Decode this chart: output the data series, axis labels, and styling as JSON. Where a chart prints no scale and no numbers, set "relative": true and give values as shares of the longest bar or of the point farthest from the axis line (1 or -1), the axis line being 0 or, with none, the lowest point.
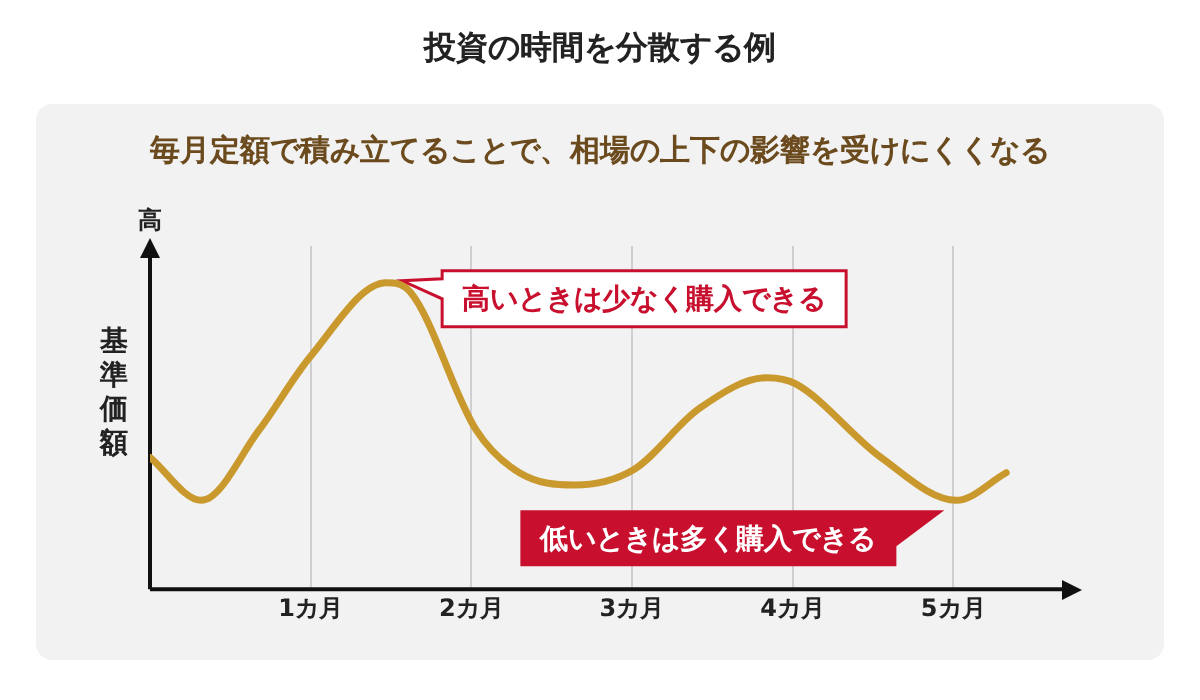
{
  "chart_data": {
    "type": "line",
    "title": "投資の時間を分散する例",
    "subtitle": "毎月定額で積み立てることで、相場の上下の影響を受けにくくなる",
    "ylabel": "基準価額",
    "relative": true,
    "x": [
      0,
      0.32,
      0.68,
      1.0,
      1.47,
      1.62,
      2.03,
      2.3,
      2.64,
      3.01,
      3.42,
      3.84,
      4.02,
      4.55,
      5.02,
      5.33
    ],
    "series": [
      {
        "color": "#c9992e",
        "values": [
          0.43,
          0.29,
          0.52,
          0.76,
          1.0,
          0.97,
          0.52,
          0.38,
          0.34,
          0.39,
          0.59,
          0.69,
          0.67,
          0.43,
          0.29,
          0.38
        ]
      }
    ],
    "xlim": [
      0,
      5.69
    ],
    "xticks": [
      {
        "value": 1,
        "label": "1カ月"
      },
      {
        "value": 2,
        "label": "2カ月"
      },
      {
        "value": 3,
        "label": "3カ月"
      },
      {
        "value": 4,
        "label": "4カ月"
      },
      {
        "value": 5,
        "label": "5カ月"
      }
    ],
    "grid": "x",
    "legend": false,
    "marker": "none",
    "line_style": "solid",
    "annotations": [
      "高",
      {
        "text": "高いときは少なく購入できる",
        "x": 1.47,
        "y": 1.0
      },
      {
        "text": "低いときは多く購入できる",
        "x": 5.02,
        "y": 0.29
      }
    ]
  }
}
